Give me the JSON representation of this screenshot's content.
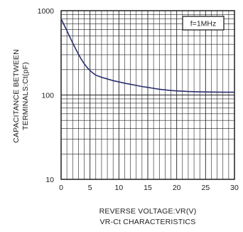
{
  "chart_data": {
    "type": "line",
    "title": "VR-Ct CHARACTERISTICS",
    "xlabel": "REVERSE VOLTAGE:VR(V)",
    "ylabel": [
      "CAPACITANCE BETWEEN",
      "TERMINALS:Ct(pF)"
    ],
    "xlim": [
      0,
      30
    ],
    "ylim": [
      10,
      1000
    ],
    "yscale": "log",
    "grid": true,
    "x_ticks": [
      0,
      5,
      10,
      15,
      20,
      25,
      30
    ],
    "y_ticks": [
      10,
      100,
      1000
    ],
    "legend": {
      "label": "f=1MHz",
      "placement": "top-right"
    },
    "colors": {
      "curve": "#2a2f6e",
      "grid": "#222222",
      "frame": "#111111"
    },
    "series": [
      {
        "x": [
          0,
          0.5,
          1,
          1.5,
          2,
          2.5,
          3,
          3.5,
          4,
          4.5,
          5,
          5.5,
          6,
          7,
          8,
          9,
          10,
          11,
          12,
          13,
          14,
          15,
          16,
          17,
          18,
          19,
          20,
          22,
          24,
          26,
          28,
          30
        ],
        "values": [
          800,
          680,
          580,
          490,
          415,
          355,
          305,
          265,
          235,
          212,
          195,
          182,
          172,
          162,
          155,
          148,
          143,
          138,
          134,
          130,
          126,
          123,
          120,
          117,
          115,
          113,
          112,
          110,
          109,
          108.5,
          108,
          108
        ]
      }
    ]
  }
}
